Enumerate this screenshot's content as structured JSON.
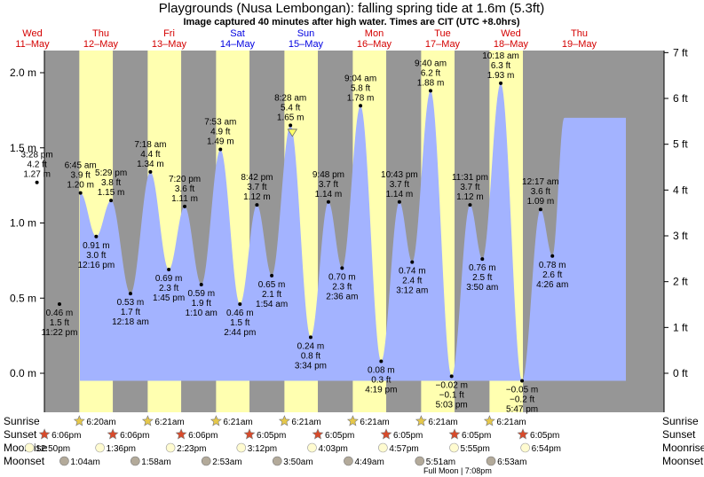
{
  "header": {
    "title": "Playgrounds (Nusa Lembongan): falling  spring tide at 1.6m (5.3ft)",
    "subtitle": "Image captured 40 minutes after high water. Times are CIT (UTC +8.0hrs)"
  },
  "chart_data": {
    "type": "area",
    "ylim_m": [
      -0.1,
      2.1
    ],
    "y_ticks_m": [
      "2.0 m",
      "1.5 m",
      "1.0 m",
      "0.5 m",
      "0.0 m"
    ],
    "y_ticks_ft": [
      "7 ft",
      "6 ft",
      "5 ft",
      "4 ft",
      "3 ft",
      "2 ft",
      "1 ft",
      "0 ft"
    ],
    "days": [
      {
        "dow": "Wed",
        "date": "11–May",
        "weekend": false
      },
      {
        "dow": "Thu",
        "date": "12–May",
        "weekend": false
      },
      {
        "dow": "Fri",
        "date": "13–May",
        "weekend": false
      },
      {
        "dow": "Sat",
        "date": "14–May",
        "weekend": true
      },
      {
        "dow": "Sun",
        "date": "15–May",
        "weekend": true
      },
      {
        "dow": "Mon",
        "date": "16–May",
        "weekend": false
      },
      {
        "dow": "Tue",
        "date": "17–May",
        "weekend": false
      },
      {
        "dow": "Wed",
        "date": "18–May",
        "weekend": false
      },
      {
        "dow": "Thu",
        "date": "19–May",
        "weekend": false
      }
    ],
    "tides": [
      {
        "type": "high",
        "datetime": "2022-05-11T15:28",
        "time": "3:28 pm",
        "ft": "4.2 ft",
        "m": 1.27,
        "m_label": "1.27 m"
      },
      {
        "type": "low",
        "datetime": "2022-05-11T23:22",
        "time": "11:22 pm",
        "ft": "1.5 ft",
        "m": 0.46,
        "m_label": "0.46 m"
      },
      {
        "type": "high",
        "datetime": "2022-05-12T06:45",
        "time": "6:45 am",
        "ft": "3.9 ft",
        "m": 1.2,
        "m_label": "1.20 m"
      },
      {
        "type": "low",
        "datetime": "2022-05-12T12:16",
        "time": "12:16 pm",
        "ft": "3.0 ft",
        "m": 0.91,
        "m_label": "0.91 m"
      },
      {
        "type": "high",
        "datetime": "2022-05-12T17:29",
        "time": "5:29 pm",
        "ft": "3.8 ft",
        "m": 1.15,
        "m_label": "1.15 m"
      },
      {
        "type": "low",
        "datetime": "2022-05-13T00:18",
        "time": "12:18 am",
        "ft": "1.7 ft",
        "m": 0.53,
        "m_label": "0.53 m"
      },
      {
        "type": "high",
        "datetime": "2022-05-13T07:18",
        "time": "7:18 am",
        "ft": "4.4 ft",
        "m": 1.34,
        "m_label": "1.34 m"
      },
      {
        "type": "low",
        "datetime": "2022-05-13T13:45",
        "time": "1:45 pm",
        "ft": "2.3 ft",
        "m": 0.69,
        "m_label": "0.69 m"
      },
      {
        "type": "high",
        "datetime": "2022-05-13T19:20",
        "time": "7:20 pm",
        "ft": "3.6 ft",
        "m": 1.11,
        "m_label": "1.11 m"
      },
      {
        "type": "low",
        "datetime": "2022-05-14T01:10",
        "time": "1:10 am",
        "ft": "1.9 ft",
        "m": 0.59,
        "m_label": "0.59 m"
      },
      {
        "type": "high",
        "datetime": "2022-05-14T07:53",
        "time": "7:53 am",
        "ft": "4.9 ft",
        "m": 1.49,
        "m_label": "1.49 m"
      },
      {
        "type": "low",
        "datetime": "2022-05-14T14:44",
        "time": "2:44 pm",
        "ft": "1.5 ft",
        "m": 0.46,
        "m_label": "0.46 m"
      },
      {
        "type": "high",
        "datetime": "2022-05-14T20:42",
        "time": "8:42 pm",
        "ft": "3.7 ft",
        "m": 1.12,
        "m_label": "1.12 m"
      },
      {
        "type": "low",
        "datetime": "2022-05-15T01:54",
        "time": "1:54 am",
        "ft": "2.1 ft",
        "m": 0.65,
        "m_label": "0.65 m"
      },
      {
        "type": "high",
        "datetime": "2022-05-15T08:28",
        "time": "8:28 am",
        "ft": "5.4 ft",
        "m": 1.65,
        "m_label": "1.65 m"
      },
      {
        "type": "low",
        "datetime": "2022-05-15T15:34",
        "time": "3:34 pm",
        "ft": "0.8 ft",
        "m": 0.24,
        "m_label": "0.24 m"
      },
      {
        "type": "high",
        "datetime": "2022-05-15T21:48",
        "time": "9:48 pm",
        "ft": "3.7 ft",
        "m": 1.14,
        "m_label": "1.14 m"
      },
      {
        "type": "low",
        "datetime": "2022-05-16T02:36",
        "time": "2:36 am",
        "ft": "2.3 ft",
        "m": 0.7,
        "m_label": "0.70 m"
      },
      {
        "type": "high",
        "datetime": "2022-05-16T09:04",
        "time": "9:04 am",
        "ft": "5.8 ft",
        "m": 1.78,
        "m_label": "1.78 m"
      },
      {
        "type": "low",
        "datetime": "2022-05-16T16:19",
        "time": "4:19 pm",
        "ft": "0.3 ft",
        "m": 0.08,
        "m_label": "0.08 m"
      },
      {
        "type": "high",
        "datetime": "2022-05-16T22:43",
        "time": "10:43 pm",
        "ft": "3.7 ft",
        "m": 1.14,
        "m_label": "1.14 m"
      },
      {
        "type": "low",
        "datetime": "2022-05-17T03:12",
        "time": "3:12 am",
        "ft": "2.4 ft",
        "m": 0.74,
        "m_label": "0.74 m"
      },
      {
        "type": "high",
        "datetime": "2022-05-17T09:40",
        "time": "9:40 am",
        "ft": "6.2 ft",
        "m": 1.88,
        "m_label": "1.88 m"
      },
      {
        "type": "low",
        "datetime": "2022-05-17T17:03",
        "time": "5:03 pm",
        "ft": "−0.1 ft",
        "m": -0.02,
        "m_label": "−0.02 m"
      },
      {
        "type": "high",
        "datetime": "2022-05-17T23:31",
        "time": "11:31 pm",
        "ft": "3.7 ft",
        "m": 1.12,
        "m_label": "1.12 m"
      },
      {
        "type": "low",
        "datetime": "2022-05-18T03:50",
        "time": "3:50 am",
        "ft": "2.5 ft",
        "m": 0.76,
        "m_label": "0.76 m"
      },
      {
        "type": "high",
        "datetime": "2022-05-18T10:18",
        "time": "10:18 am",
        "ft": "6.3 ft",
        "m": 1.93,
        "m_label": "1.93 m"
      },
      {
        "type": "low",
        "datetime": "2022-05-18T17:47",
        "time": "5:47 pm",
        "ft": "−0.2 ft",
        "m": -0.05,
        "m_label": "−0.05 m"
      },
      {
        "type": "high",
        "datetime": "2022-05-19T00:17",
        "time": "12:17 am",
        "ft": "3.6 ft",
        "m": 1.09,
        "m_label": "1.09 m"
      },
      {
        "type": "low",
        "datetime": "2022-05-19T04:26",
        "time": "4:26 am",
        "ft": "2.6 ft",
        "m": 0.78,
        "m_label": "0.78 m"
      }
    ],
    "capture": {
      "datetime": "2022-05-15T09:08",
      "m": 1.6
    },
    "sun": [
      {
        "rise": "2022-05-12T06:20",
        "rise_label": "6:20am",
        "set": "2022-05-11T18:06",
        "set_label": "6:06pm"
      },
      {
        "rise": "2022-05-13T06:21",
        "rise_label": "6:21am",
        "set": "2022-05-12T18:06",
        "set_label": "6:06pm"
      },
      {
        "rise": "2022-05-14T06:21",
        "rise_label": "6:21am",
        "set": "2022-05-13T18:06",
        "set_label": "6:06pm"
      },
      {
        "rise": "2022-05-15T06:21",
        "rise_label": "6:21am",
        "set": "2022-05-14T18:05",
        "set_label": "6:05pm"
      },
      {
        "rise": "2022-05-16T06:21",
        "rise_label": "6:21am",
        "set": "2022-05-15T18:05",
        "set_label": "6:05pm"
      },
      {
        "rise": "2022-05-17T06:21",
        "rise_label": "6:21am",
        "set": "2022-05-16T18:05",
        "set_label": "6:05pm"
      },
      {
        "rise": "2022-05-18T06:21",
        "rise_label": "6:21am",
        "set": "2022-05-17T18:05",
        "set_label": "6:05pm"
      },
      {
        "rise": null,
        "rise_label": null,
        "set": "2022-05-18T18:05",
        "set_label": "6:05pm"
      }
    ],
    "moonrise": [
      {
        "datetime": "2022-05-11T12:50",
        "label": "12:50pm"
      },
      {
        "datetime": "2022-05-12T13:36",
        "label": "1:36pm"
      },
      {
        "datetime": "2022-05-13T14:23",
        "label": "2:23pm"
      },
      {
        "datetime": "2022-05-14T15:12",
        "label": "3:12pm"
      },
      {
        "datetime": "2022-05-15T16:03",
        "label": "4:03pm"
      },
      {
        "datetime": "2022-05-16T16:57",
        "label": "4:57pm"
      },
      {
        "datetime": "2022-05-17T17:55",
        "label": "5:55pm"
      },
      {
        "datetime": "2022-05-18T18:54",
        "label": "6:54pm"
      }
    ],
    "moonset": [
      {
        "datetime": "2022-05-12T01:04",
        "label": "1:04am"
      },
      {
        "datetime": "2022-05-13T01:58",
        "label": "1:58am"
      },
      {
        "datetime": "2022-05-14T02:53",
        "label": "2:53am"
      },
      {
        "datetime": "2022-05-15T03:50",
        "label": "3:50am"
      },
      {
        "datetime": "2022-05-16T04:49",
        "label": "4:49am"
      },
      {
        "datetime": "2022-05-17T05:51",
        "label": "5:51am"
      },
      {
        "datetime": "2022-05-18T06:53",
        "label": "6:53am"
      }
    ],
    "full_moon": {
      "datetime": "2022-05-17T19:08",
      "label": "Full Moon | 7:08pm"
    },
    "row_labels": {
      "sunrise": "Sunrise",
      "sunset": "Sunset",
      "moonrise": "Moonrise",
      "moonset": "Moonset"
    }
  },
  "colors": {
    "day": "#ffffb0",
    "night": "#969696",
    "water": "#a3b3ff",
    "weekday_text": "#d40000",
    "weekend_text": "#0000e0",
    "sun_icon": "#e6c84a",
    "sunset_icon": "#d94a2a",
    "moon_icon": "#fffbd0",
    "moonset_icon": "#b3aa9a",
    "capture_marker": "#ffff66"
  }
}
